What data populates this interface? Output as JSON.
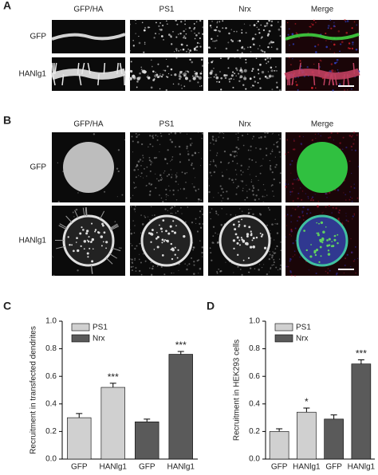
{
  "panel_a": {
    "label": "A",
    "columns": [
      "GFP/HA",
      "PS1",
      "Nrx",
      "Merge"
    ],
    "rows": [
      "GFP",
      "HANlg1"
    ]
  },
  "panel_b": {
    "label": "B",
    "columns": [
      "GFP/HA",
      "PS1",
      "Nrx",
      "Merge"
    ],
    "rows": [
      "GFP",
      "HANlg1"
    ]
  },
  "chart_data": [
    {
      "type": "bar",
      "label": "C",
      "y_label": "Recruitment in transfected dendrites",
      "categories": [
        "GFP",
        "HANlg1",
        "GFP",
        "HANlg1"
      ],
      "series": [
        {
          "name": "PS1",
          "color": "#d0d0d0",
          "values": [
            0.3,
            0.52,
            null,
            null
          ],
          "errors": [
            0.03,
            0.03,
            null,
            null
          ]
        },
        {
          "name": "Nrx",
          "color": "#5a5a5a",
          "values": [
            null,
            null,
            0.27,
            0.76
          ],
          "errors": [
            null,
            null,
            0.02,
            0.02
          ]
        }
      ],
      "significance": [
        null,
        "***",
        null,
        "***"
      ],
      "ylim": [
        0,
        1.0
      ],
      "yticks": [
        {
          "value": 0,
          "label": "0.0"
        },
        0.2,
        0.4,
        0.6,
        0.8,
        {
          "value": 1.0,
          "label": "1.0"
        }
      ]
    },
    {
      "type": "bar",
      "label": "D",
      "y_label": "Recruitment in HEK293 cells",
      "categories": [
        "GFP",
        "HANlg1",
        "GFP",
        "HANlg1"
      ],
      "series": [
        {
          "name": "PS1",
          "color": "#d0d0d0",
          "values": [
            0.2,
            0.34,
            null,
            null
          ],
          "errors": [
            0.02,
            0.03,
            null,
            null
          ]
        },
        {
          "name": "Nrx",
          "color": "#5a5a5a",
          "values": [
            null,
            null,
            0.29,
            0.69
          ],
          "errors": [
            null,
            null,
            0.03,
            0.03
          ]
        }
      ],
      "significance": [
        null,
        "*",
        null,
        "***"
      ],
      "ylim": [
        0,
        1.0
      ],
      "yticks": [
        {
          "value": 0,
          "label": "0.0"
        },
        0.2,
        0.4,
        0.6,
        0.8,
        {
          "value": 1.0,
          "label": "1.0"
        }
      ]
    }
  ]
}
